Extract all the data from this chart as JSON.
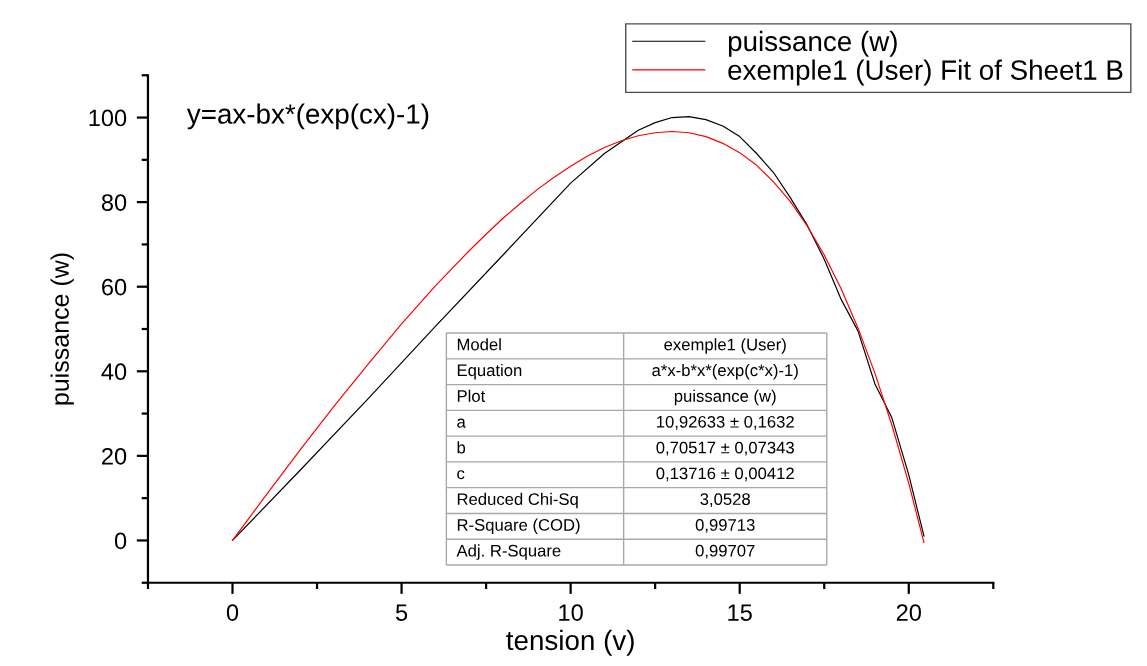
{
  "chart_data": {
    "type": "line",
    "xlabel": "tension (v)",
    "ylabel": "puissance (w)",
    "xlim": [
      -2.5,
      22.5
    ],
    "ylim": [
      -10,
      110
    ],
    "xticks": [
      {
        "value": -2.5,
        "label": null
      },
      0,
      {
        "value": 2.5,
        "label": null
      },
      5,
      {
        "value": 7.5,
        "label": null
      },
      10,
      {
        "value": 12.5,
        "label": null
      },
      15,
      {
        "value": 17.5,
        "label": null
      },
      20,
      {
        "value": 22.5,
        "label": null
      }
    ],
    "yticks": [
      {
        "value": -10,
        "label": null
      },
      0,
      {
        "value": 10,
        "label": null
      },
      20,
      {
        "value": 30,
        "label": null
      },
      40,
      {
        "value": 50,
        "label": null
      },
      60,
      {
        "value": 70,
        "label": null
      },
      80,
      {
        "value": 90,
        "label": null
      },
      100,
      {
        "value": 110,
        "label": null
      }
    ],
    "grid": false,
    "legend": "top right",
    "series": [
      {
        "name": "puissance (w)",
        "color": "#000000",
        "x": [
          0,
          2,
          4,
          6,
          8,
          10,
          11,
          12,
          12.5,
          13,
          13.5,
          14,
          14.5,
          15,
          15.5,
          16,
          16.5,
          17,
          17.5,
          18,
          18.5,
          19,
          19.5,
          20,
          20.45
        ],
        "values": [
          0,
          16.6,
          33.4,
          50.6,
          67.5,
          84.5,
          91.5,
          97,
          98.8,
          100,
          100.2,
          99.5,
          98,
          95.5,
          91.5,
          87,
          81,
          74.5,
          66.5,
          57,
          49.5,
          37,
          29,
          15.5,
          1
        ]
      },
      {
        "name": "exemple1 (User) Fit of Sheet1 B",
        "color": "#ff0000",
        "x": [
          0,
          1,
          2,
          3,
          4,
          5,
          6,
          7,
          7.5,
          8,
          8.5,
          9,
          9.5,
          10,
          10.5,
          11,
          11.5,
          12,
          12.5,
          13,
          13.5,
          14,
          14.5,
          15,
          15.5,
          16,
          16.5,
          17,
          17.5,
          18,
          18.5,
          19,
          19.5,
          20,
          20.45
        ],
        "values": [
          0,
          10.8,
          21.4,
          31.7,
          41.6,
          51.2,
          60.2,
          68.5,
          72.4,
          76.2,
          79.6,
          82.9,
          85.8,
          88.5,
          90.9,
          92.9,
          94.5,
          95.7,
          96.4,
          96.7,
          96.4,
          95.5,
          93.9,
          91.7,
          88.7,
          84.8,
          80.1,
          74.3,
          67.5,
          59.5,
          50.2,
          39.5,
          27.3,
          13.5,
          -0.5
        ]
      }
    ],
    "annotations": [
      "y=ax-bx*(exp(cx)-1)",
      "Model",
      "exemple1 (User)",
      "Equation",
      "a*x-b*x*(exp(c*x)-1)",
      "Plot",
      "puissance (w)",
      "a",
      "10,92633 ± 0,1632",
      "b",
      "0,70517 ± 0,07343",
      "c",
      "0,13716 ± 0,00412",
      "Reduced Chi-Sq",
      "3,0528",
      "R-Square (COD)",
      "0,99713",
      "Adj. R-Square",
      "0,99707"
    ]
  }
}
